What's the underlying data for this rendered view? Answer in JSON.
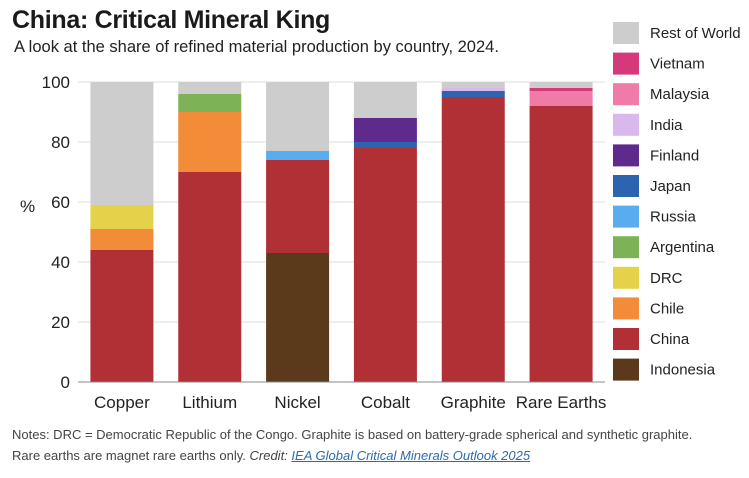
{
  "header": {
    "title": "China: Critical Mineral King",
    "subtitle": "A look at the share of refined material production by country, 2024."
  },
  "notes": {
    "text": "Notes: DRC = Democratic Republic of the Congo. Graphite is based on battery-grade spherical and synthetic graphite. Rare earths are magnet rare earths only.",
    "credit_label": "Credit:",
    "credit_link": "IEA Global Critical Minerals Outlook 2025"
  },
  "chart_data": {
    "type": "bar",
    "stacked": true,
    "ylabel": "%",
    "ylim": [
      0,
      100
    ],
    "yticks": [
      0,
      20,
      40,
      60,
      80,
      100
    ],
    "grid": true,
    "legend_position": "right",
    "categories": [
      "Copper",
      "Lithium",
      "Nickel",
      "Cobalt",
      "Graphite",
      "Rare Earths"
    ],
    "series": [
      {
        "name": "Indonesia",
        "color": "#5a3a1a",
        "values": [
          0,
          0,
          43,
          0,
          0,
          0
        ]
      },
      {
        "name": "China",
        "color": "#b03035",
        "values": [
          44,
          70,
          31,
          78,
          95,
          92
        ]
      },
      {
        "name": "Chile",
        "color": "#f28c38",
        "values": [
          7,
          20,
          0,
          0,
          0,
          0
        ]
      },
      {
        "name": "DRC",
        "color": "#e6d24a",
        "values": [
          8,
          0,
          0,
          0,
          0,
          0
        ]
      },
      {
        "name": "Argentina",
        "color": "#7db356",
        "values": [
          0,
          6,
          0,
          0,
          0,
          0
        ]
      },
      {
        "name": "Russia",
        "color": "#5aacf0",
        "values": [
          0,
          0,
          3,
          0,
          0,
          0
        ]
      },
      {
        "name": "Japan",
        "color": "#2c64b0",
        "values": [
          0,
          0,
          0,
          2,
          2,
          0
        ]
      },
      {
        "name": "Finland",
        "color": "#5e2b8c",
        "values": [
          0,
          0,
          0,
          8,
          0,
          0
        ]
      },
      {
        "name": "India",
        "color": "#d9b8ee",
        "values": [
          0,
          0,
          0,
          0,
          1,
          0
        ]
      },
      {
        "name": "Malaysia",
        "color": "#f07aa8",
        "values": [
          0,
          0,
          0,
          0,
          0,
          5
        ]
      },
      {
        "name": "Vietnam",
        "color": "#d43a7a",
        "values": [
          0,
          0,
          0,
          0,
          0,
          1
        ]
      },
      {
        "name": "Rest of World",
        "color": "#cdcdcd",
        "values": [
          41,
          4,
          23,
          12,
          2,
          2
        ]
      }
    ],
    "legend_order": [
      "Rest of World",
      "Vietnam",
      "Malaysia",
      "India",
      "Finland",
      "Japan",
      "Russia",
      "Argentina",
      "DRC",
      "Chile",
      "China",
      "Indonesia"
    ]
  }
}
